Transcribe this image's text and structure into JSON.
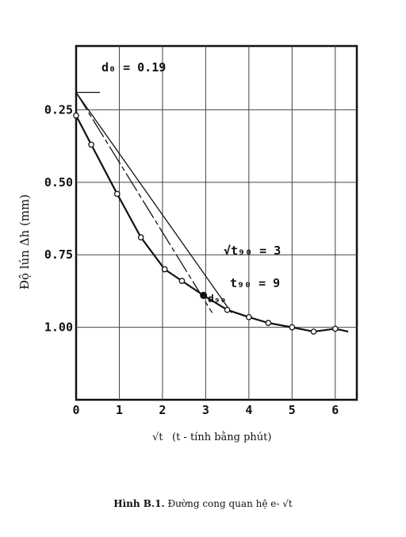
{
  "chart_data": {
    "type": "line",
    "x": [
      0,
      0.35,
      0.95,
      1.5,
      2.05,
      2.45,
      2.95,
      3.5,
      4.0,
      4.45,
      5.0,
      5.5,
      6.0,
      6.3
    ],
    "y": [
      0.27,
      0.37,
      0.54,
      0.69,
      0.8,
      0.84,
      0.89,
      0.94,
      0.965,
      0.985,
      1.0,
      1.015,
      1.005,
      1.015
    ],
    "xlim": [
      0,
      6.5
    ],
    "ylim": [
      0.03,
      1.25
    ],
    "xticks": [
      0,
      1,
      2,
      3,
      4,
      5,
      6
    ],
    "yticks": [
      {
        "value": 0.25,
        "label": "0.25"
      },
      {
        "value": 0.5,
        "label": "0.50"
      },
      {
        "value": 0.75,
        "label": "0.75"
      },
      {
        "value": 1.0,
        "label": "1.00"
      }
    ],
    "y_inverted": true,
    "grid": true,
    "xlabel": {
      "symbol": "√t",
      "text": "(t - tính bằng phút)"
    },
    "ylabel": "Độ lún Δh (mm)",
    "annotations": {
      "d0": "d₀ = 0.19",
      "sqrt_t90": "√t₉₀ = 3",
      "t90": "t₉₀ = 9",
      "d90": "d₉₀"
    },
    "d0_value": 0.19,
    "d90_point": {
      "x": 2.95,
      "y": 0.89
    },
    "tangent_line": {
      "x": [
        0,
        3.15
      ],
      "y": [
        0.19,
        0.95
      ]
    },
    "construction_line": {
      "x": [
        0,
        3.6
      ],
      "y": [
        0.19,
        0.95
      ]
    }
  },
  "caption": {
    "label": "Hình B.1.",
    "text": "Đường cong quan hệ e-",
    "symbol": "√t"
  }
}
